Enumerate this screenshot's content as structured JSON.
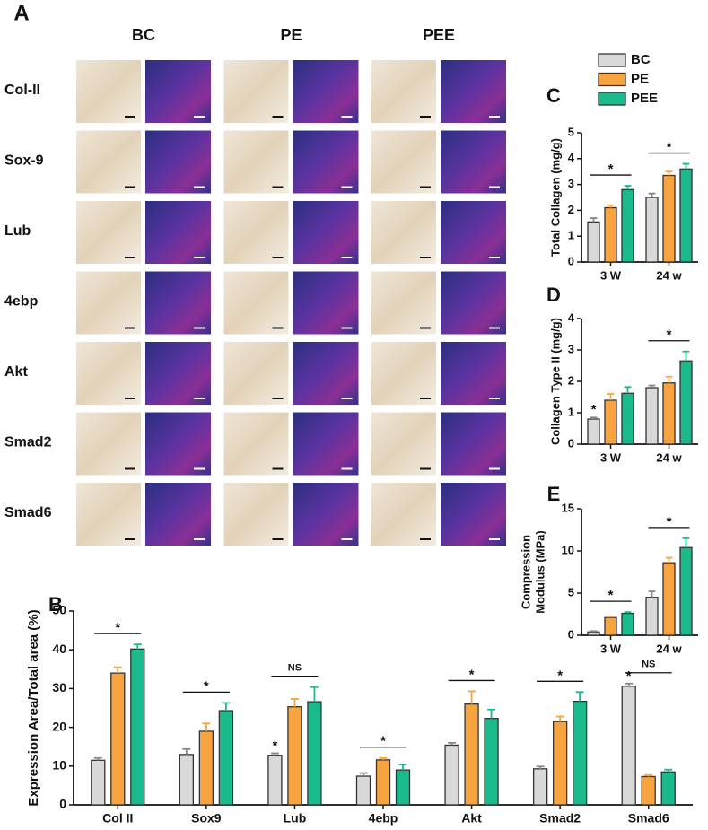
{
  "panel_a": {
    "label": "A",
    "groups": [
      "BC",
      "PE",
      "PEE"
    ],
    "rows": [
      "Col-II",
      "Sox-9",
      "Lub",
      "4ebp",
      "Akt",
      "Smad2",
      "Smad6"
    ]
  },
  "chart_data": [
    {
      "type": "bar",
      "panel": "B",
      "ylabel": "Expression Area/Total area (%)",
      "categories": [
        "Col II",
        "Sox9",
        "Lub",
        "4ebp",
        "Akt",
        "Smad2",
        "Smad6"
      ],
      "series": [
        {
          "color": "#d9d9d9",
          "values": [
            11.5,
            13,
            12.8,
            7.4,
            15.4,
            9.3,
            30.6
          ],
          "errors": [
            0.6,
            1.4,
            0.5,
            0.8,
            0.6,
            0.6,
            0.7
          ],
          "labels": [
            null,
            null,
            "*",
            null,
            null,
            null,
            "*"
          ]
        },
        {
          "color": "#f7a440",
          "values": [
            34,
            19,
            25.3,
            11.6,
            26,
            21.5,
            7.3
          ],
          "errors": [
            1.5,
            2,
            2,
            0.5,
            3.3,
            1.3,
            0.4
          ]
        },
        {
          "color": "#1aba8c",
          "values": [
            40.2,
            24.3,
            26.6,
            9,
            22.3,
            26.7,
            8.5
          ],
          "errors": [
            1.2,
            2,
            3.8,
            1.4,
            2.3,
            2.4,
            0.6
          ]
        }
      ],
      "brackets": [
        "*",
        "*",
        "NS",
        "*",
        "*",
        "*",
        "NS"
      ],
      "ylim": [
        0,
        50
      ],
      "yticks": [
        0,
        10,
        20,
        30,
        40,
        50
      ]
    },
    {
      "type": "bar",
      "panel": "C",
      "ylabel": "Total Collagen (mg/g)",
      "categories": [
        "3 W",
        "24 w"
      ],
      "series": [
        {
          "name": "BC",
          "color": "#d9d9d9",
          "values": [
            1.55,
            2.5
          ],
          "errors": [
            0.15,
            0.15
          ]
        },
        {
          "name": "PE",
          "color": "#f7a440",
          "values": [
            2.1,
            3.35
          ],
          "errors": [
            0.1,
            0.15
          ]
        },
        {
          "name": "PEE",
          "color": "#1aba8c",
          "values": [
            2.8,
            3.6
          ],
          "errors": [
            0.15,
            0.2
          ]
        }
      ],
      "brackets": [
        "*",
        "*"
      ],
      "ylim": [
        0,
        5
      ],
      "yticks": [
        0,
        1,
        2,
        3,
        4,
        5
      ]
    },
    {
      "type": "bar",
      "panel": "D",
      "ylabel": "Collagen Type II (mg/g)",
      "categories": [
        "3 W",
        "24 w"
      ],
      "series": [
        {
          "color": "#d9d9d9",
          "values": [
            0.8,
            1.8
          ],
          "errors": [
            0.05,
            0.07
          ],
          "labels": [
            "*",
            null
          ]
        },
        {
          "color": "#f7a440",
          "values": [
            1.4,
            1.95
          ],
          "errors": [
            0.2,
            0.2
          ]
        },
        {
          "color": "#1aba8c",
          "values": [
            1.62,
            2.65
          ],
          "errors": [
            0.2,
            0.3
          ]
        }
      ],
      "brackets": [
        null,
        "*"
      ],
      "ylim": [
        0,
        4
      ],
      "yticks": [
        0,
        1,
        2,
        3,
        4
      ]
    },
    {
      "type": "bar",
      "panel": "E",
      "ylabel": [
        "Compression",
        "Modulus (MPa)"
      ],
      "categories": [
        "3 W",
        "24 w"
      ],
      "series": [
        {
          "color": "#d9d9d9",
          "values": [
            0.4,
            4.5
          ],
          "errors": [
            0.1,
            0.7
          ]
        },
        {
          "color": "#f7a440",
          "values": [
            2.1,
            8.6
          ],
          "errors": [
            0.1,
            0.6
          ]
        },
        {
          "color": "#1aba8c",
          "values": [
            2.6,
            10.4
          ],
          "errors": [
            0.15,
            1.1
          ]
        }
      ],
      "brackets": [
        "*",
        "*"
      ],
      "ylim": [
        0,
        15
      ],
      "yticks": [
        0,
        5,
        10,
        15
      ]
    }
  ]
}
